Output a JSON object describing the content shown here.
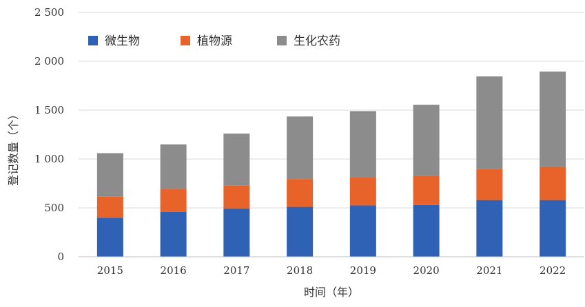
{
  "chart_data": {
    "type": "bar",
    "stacked": true,
    "categories": [
      "2015",
      "2016",
      "2017",
      "2018",
      "2019",
      "2020",
      "2021",
      "2022"
    ],
    "series": [
      {
        "name": "微生物",
        "color": "#2f62b5",
        "values": [
          400,
          460,
          495,
          510,
          525,
          530,
          580,
          580
        ]
      },
      {
        "name": "植物源",
        "color": "#e8632a",
        "values": [
          215,
          235,
          235,
          285,
          285,
          300,
          320,
          340
        ]
      },
      {
        "name": "生化农药",
        "color": "#8c8c8c",
        "values": [
          445,
          455,
          530,
          640,
          680,
          725,
          945,
          975
        ]
      }
    ],
    "xlabel": "时间（年）",
    "ylabel": "登记数量（个）",
    "ylim": [
      0,
      2500
    ],
    "yticks": [
      0,
      500,
      1000,
      1500,
      2000,
      2500
    ],
    "ytick_labels": [
      "0",
      "500",
      "1 000",
      "1 500",
      "2 000",
      "2 500"
    ],
    "grid": "horizontal",
    "legend_position": "top-left"
  }
}
